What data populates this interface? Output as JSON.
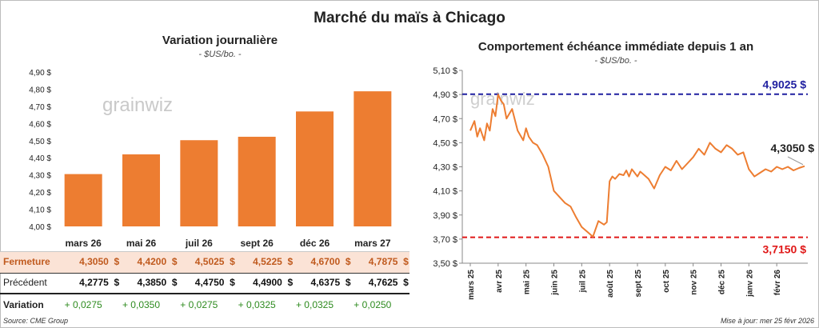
{
  "title": "Marché du maïs à Chicago",
  "source": "Source: CME Group",
  "updated": "Mise à jour: mer 25 févr 2026",
  "watermark": "grainwiz",
  "colors": {
    "orange": "#ED7D31",
    "blue": "#1F1FA0",
    "red": "#E01818",
    "green": "#2E8B1F",
    "fermeture_bg": "#FBE3D6",
    "fermeture_text": "#C05A1E"
  },
  "chart_data": [
    {
      "type": "bar",
      "title": "Variation journalière",
      "subtitle": "- $US/bo. -",
      "categories": [
        "mars 26",
        "mai 26",
        "juil 26",
        "sept 26",
        "déc 26",
        "mars 27"
      ],
      "values": [
        4.305,
        4.42,
        4.5025,
        4.5225,
        4.67,
        4.7875
      ],
      "ylim": [
        4.0,
        4.9
      ],
      "yticks": [
        "4,90 $",
        "4,80 $",
        "4,70 $",
        "4,60 $",
        "4,50 $",
        "4,40 $",
        "4,30 $",
        "4,20 $",
        "4,10 $",
        "4,00 $"
      ],
      "table": {
        "rows": [
          {
            "label": "Fermeture",
            "cells": [
              "4,3050  $",
              "4,4200  $",
              "4,5025  $",
              "4,5225  $",
              "4,6700  $",
              "4,7875  $"
            ]
          },
          {
            "label": "Précédent",
            "cells": [
              "4,2775  $",
              "4,3850  $",
              "4,4750  $",
              "4,4900  $",
              "4,6375  $",
              "4,7625  $"
            ]
          },
          {
            "label": "Variation",
            "cells": [
              "+ 0,0275",
              "+ 0,0350",
              "+ 0,0275",
              "+ 0,0325",
              "+ 0,0325",
              "+ 0,0250"
            ]
          }
        ]
      }
    },
    {
      "type": "line",
      "title": "Comportement  échéance immédiate depuis 1 an",
      "subtitle": "- $US/bo. -",
      "ylim": [
        3.5,
        5.1
      ],
      "yticks": [
        "5,10 $",
        "4,90 $",
        "4,70 $",
        "4,50 $",
        "4,30 $",
        "4,10 $",
        "3,90 $",
        "3,70 $",
        "3,50 $"
      ],
      "xlabels": [
        "mars 25",
        "avr 25",
        "mai 25",
        "juin 25",
        "juil 25",
        "août 25",
        "sept 25",
        "oct 25",
        "nov 25",
        "déc 25",
        "janv 26",
        "févr 26"
      ],
      "high": {
        "value": 4.9025,
        "label": "4,9025 $"
      },
      "low": {
        "value": 3.715,
        "label": "3,7150 $"
      },
      "last": {
        "value": 4.305,
        "label": "4,3050 $"
      },
      "series": [
        {
          "name": "Échéance immédiate",
          "x": [
            0,
            0.15,
            0.25,
            0.35,
            0.5,
            0.6,
            0.7,
            0.8,
            0.9,
            1.0,
            1.1,
            1.2,
            1.3,
            1.5,
            1.7,
            1.9,
            2.0,
            2.1,
            2.25,
            2.4,
            2.6,
            2.8,
            3.0,
            3.2,
            3.4,
            3.6,
            3.8,
            4.0,
            4.2,
            4.4,
            4.6,
            4.8,
            4.9,
            5.0,
            5.1,
            5.2,
            5.35,
            5.5,
            5.6,
            5.7,
            5.8,
            5.9,
            6.0,
            6.1,
            6.2,
            6.3,
            6.4,
            6.6,
            6.8,
            7.0,
            7.2,
            7.4,
            7.6,
            7.8,
            8.0,
            8.2,
            8.4,
            8.6,
            8.8,
            9.0,
            9.2,
            9.4,
            9.6,
            9.8,
            10.0,
            10.2,
            10.4,
            10.6,
            10.8,
            11.0,
            11.2,
            11.4,
            11.6,
            11.8,
            12.0
          ],
          "values": [
            4.6,
            4.68,
            4.55,
            4.62,
            4.52,
            4.66,
            4.6,
            4.78,
            4.72,
            4.9,
            4.85,
            4.82,
            4.7,
            4.78,
            4.6,
            4.52,
            4.62,
            4.55,
            4.5,
            4.48,
            4.4,
            4.3,
            4.1,
            4.05,
            4.0,
            3.97,
            3.88,
            3.8,
            3.76,
            3.72,
            3.85,
            3.82,
            3.84,
            4.18,
            4.22,
            4.2,
            4.24,
            4.23,
            4.27,
            4.22,
            4.28,
            4.25,
            4.22,
            4.26,
            4.24,
            4.22,
            4.2,
            4.12,
            4.23,
            4.3,
            4.27,
            4.35,
            4.28,
            4.33,
            4.38,
            4.45,
            4.4,
            4.5,
            4.45,
            4.42,
            4.48,
            4.45,
            4.4,
            4.42,
            4.28,
            4.22,
            4.25,
            4.28,
            4.26,
            4.3,
            4.28,
            4.3,
            4.27,
            4.29,
            4.305
          ]
        }
      ]
    }
  ]
}
